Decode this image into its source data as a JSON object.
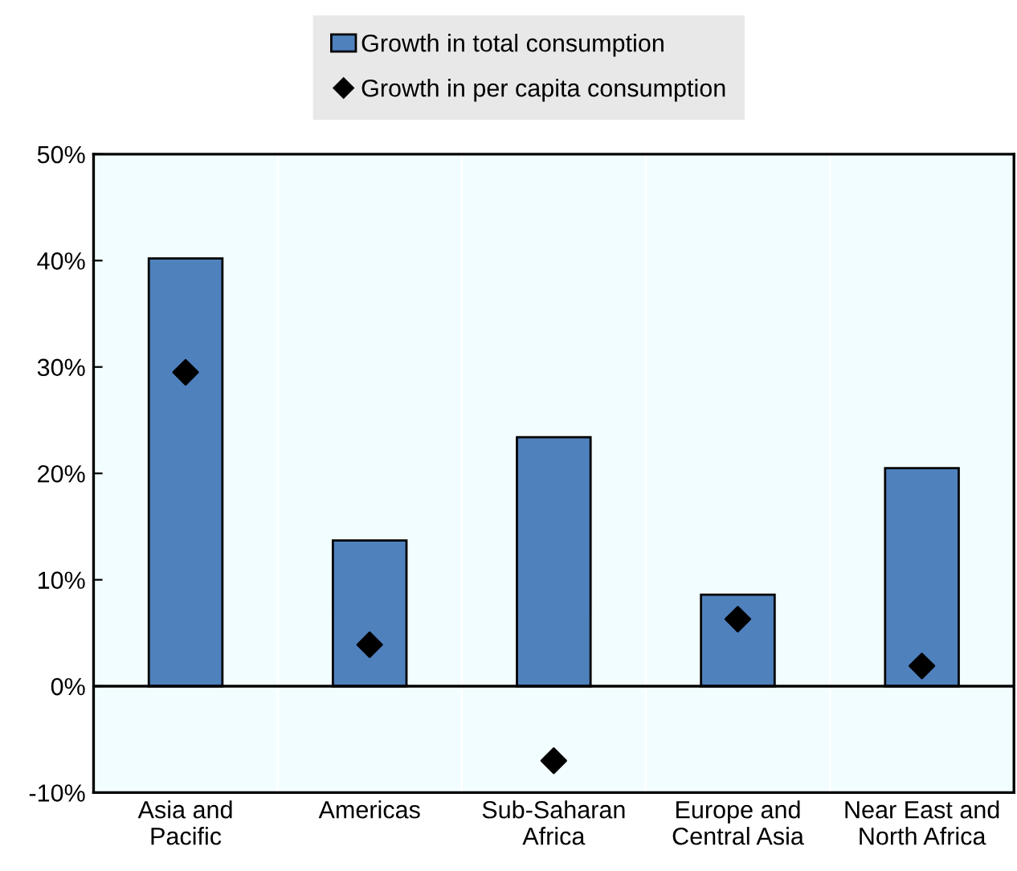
{
  "chart_data": {
    "type": "bar",
    "categories": [
      "Asia and\nPacific",
      "Americas",
      "Sub-Saharan\nAfrica",
      "Europe and\nCentral Asia",
      "Near East and\nNorth Africa"
    ],
    "series": [
      {
        "name": "Growth in total consumption",
        "color": "#4f81bd",
        "values": [
          40.2,
          13.7,
          23.4,
          8.6,
          20.5
        ]
      },
      {
        "name": "Growth in per capita consumption",
        "type": "scatter",
        "color": "#000000",
        "marker": "diamond",
        "values": [
          29.5,
          3.9,
          -7.0,
          6.3,
          1.9
        ]
      }
    ],
    "ylim": [
      -10,
      50
    ],
    "yticks": [
      {
        "value": -10,
        "label": "-10%"
      },
      {
        "value": 0,
        "label": "0%"
      },
      {
        "value": 10,
        "label": "10%"
      },
      {
        "value": 20,
        "label": "20%"
      },
      {
        "value": 30,
        "label": "30%"
      },
      {
        "value": 40,
        "label": "40%"
      },
      {
        "value": 50,
        "label": "50%"
      }
    ],
    "legend": "top"
  }
}
